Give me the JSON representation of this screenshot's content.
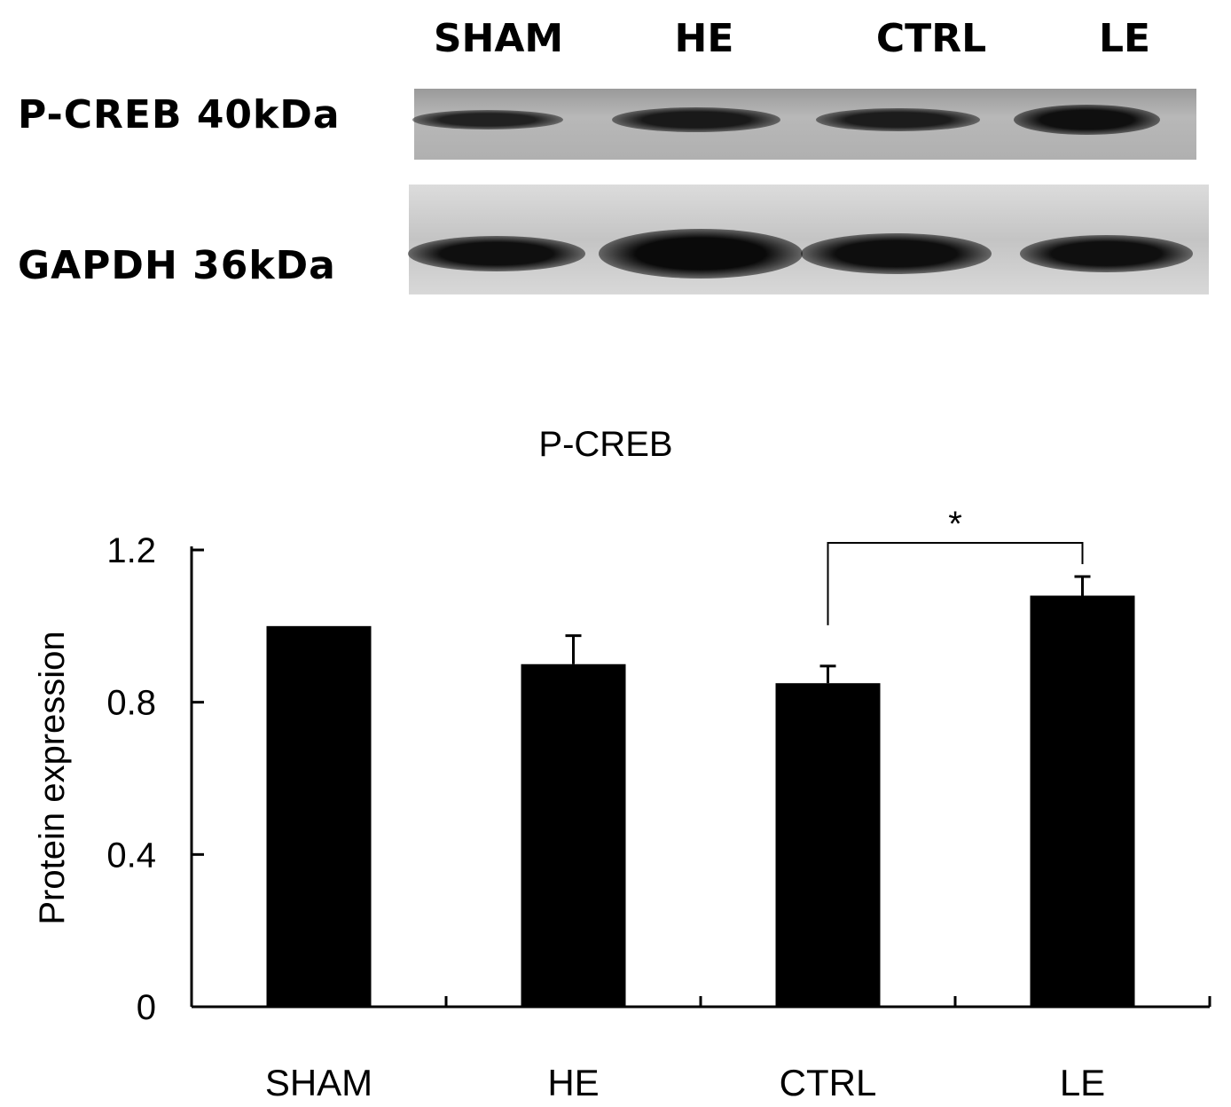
{
  "blot": {
    "lanes": [
      "SHAM",
      "HE",
      "CTRL",
      "LE"
    ],
    "rows": [
      {
        "label": "P-CREB  40kDa",
        "intensity": [
          0.55,
          0.7,
          0.65,
          0.9
        ]
      },
      {
        "label": "GAPDH  36kDa",
        "intensity": [
          0.9,
          1.0,
          0.92,
          0.9
        ]
      }
    ]
  },
  "chart_data": {
    "type": "bar",
    "title": "P-CREB",
    "ylabel": "Protein expression",
    "xlabel": "",
    "categories": [
      "SHAM",
      "HE",
      "CTRL",
      "LE"
    ],
    "values": [
      1.0,
      0.9,
      0.85,
      1.08
    ],
    "errors": [
      0.0,
      0.075,
      0.045,
      0.05
    ],
    "ylim": [
      0,
      1.2
    ],
    "yticks": [
      0,
      0.4,
      0.8,
      1.2
    ],
    "ytick_labels": [
      "0",
      "0.4",
      "0.8",
      "1.2"
    ],
    "significance": {
      "between": [
        "CTRL",
        "LE"
      ],
      "label": "*"
    },
    "bar_color": "#000000",
    "grid": false,
    "legend": "none"
  }
}
